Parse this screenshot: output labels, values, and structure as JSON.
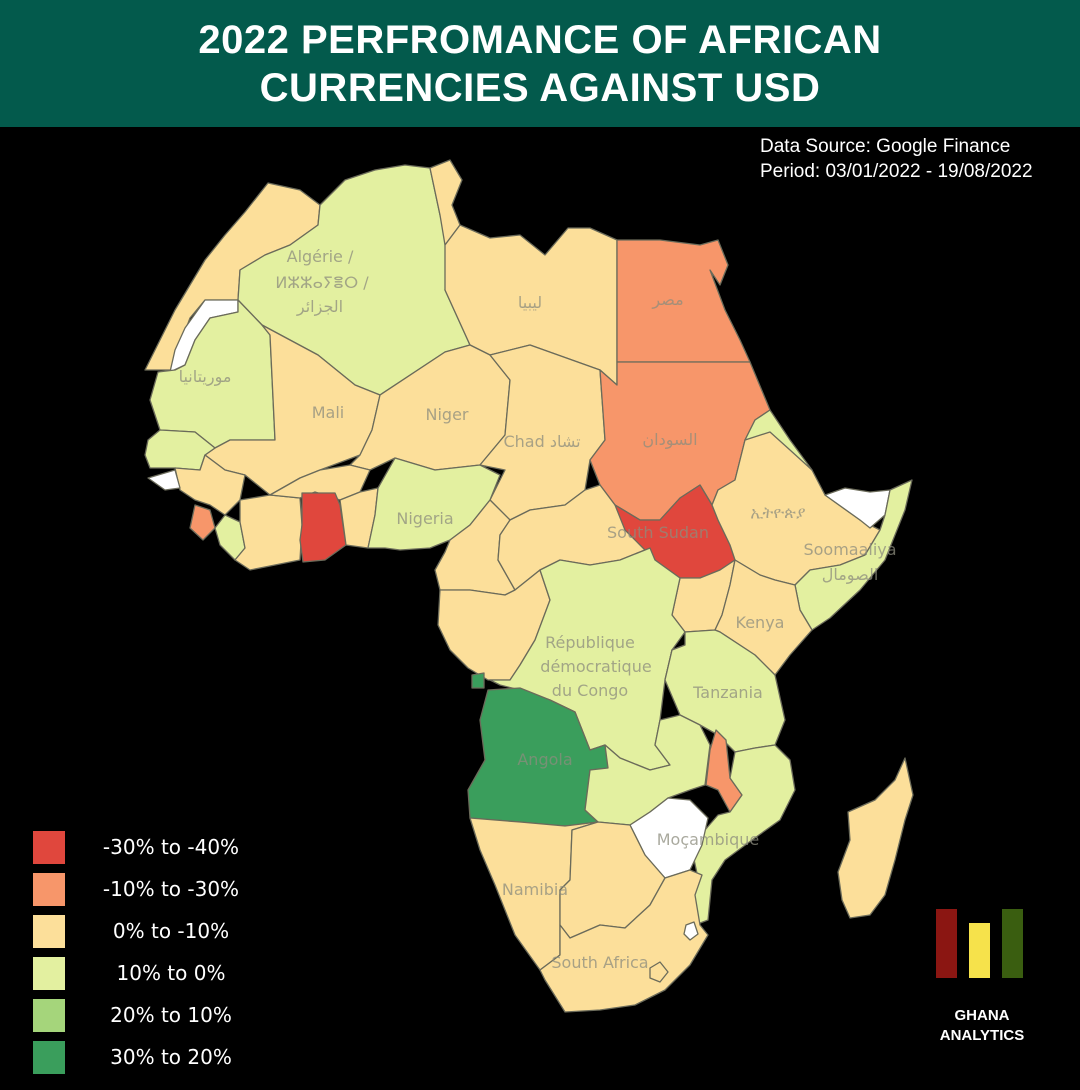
{
  "title": {
    "line1": "2022 PERFROMANCE OF AFRICAN",
    "line2": "CURRENCIES AGAINST USD"
  },
  "source": {
    "line1": "Data Source: Google Finance",
    "line2": "Period: 03/01/2022 - 19/08/2022"
  },
  "legend": [
    {
      "label": "-30% to -40%",
      "color": "#e0473d"
    },
    {
      "label": "-10% to -30%",
      "color": "#f7966a"
    },
    {
      "label": "0% to -10%",
      "color": "#fcdf9a"
    },
    {
      "label": "10% to 0%",
      "color": "#e3f0a0"
    },
    {
      "label": "20% to 10%",
      "color": "#a5d57b"
    },
    {
      "label": "30% to 20%",
      "color": "#3a9e5c"
    }
  ],
  "map_labels": {
    "algeria_1": "Algérie /",
    "algeria_2": "ⵍⵣⵣⴰⵢⴻⵔ /",
    "algeria_3": "الجزائر",
    "libya": "ليبيا",
    "egypt": "مصر",
    "mauritania": "موريتانيا",
    "mali": "Mali",
    "niger": "Niger",
    "chad": "Chad تشاد",
    "sudan": "السودان",
    "nigeria": "Nigeria",
    "ethiopia": "ኢትዮጵያ",
    "south_sudan": "South Sudan",
    "somalia_1": "Soomaaliya",
    "somalia_2": "الصومال",
    "kenya": "Kenya",
    "drc_1": "République",
    "drc_2": "démocratique",
    "drc_3": "du Congo",
    "tanzania": "Tanzania",
    "angola": "Angola",
    "mozambique": "Moçambique",
    "namibia": "Namibia",
    "south_africa": "South Africa"
  },
  "logo": {
    "line1": "GHANA",
    "line2": "ANALYTICS",
    "colors": [
      "#8b1612",
      "#f6e24b",
      "#3a5e10"
    ]
  }
}
